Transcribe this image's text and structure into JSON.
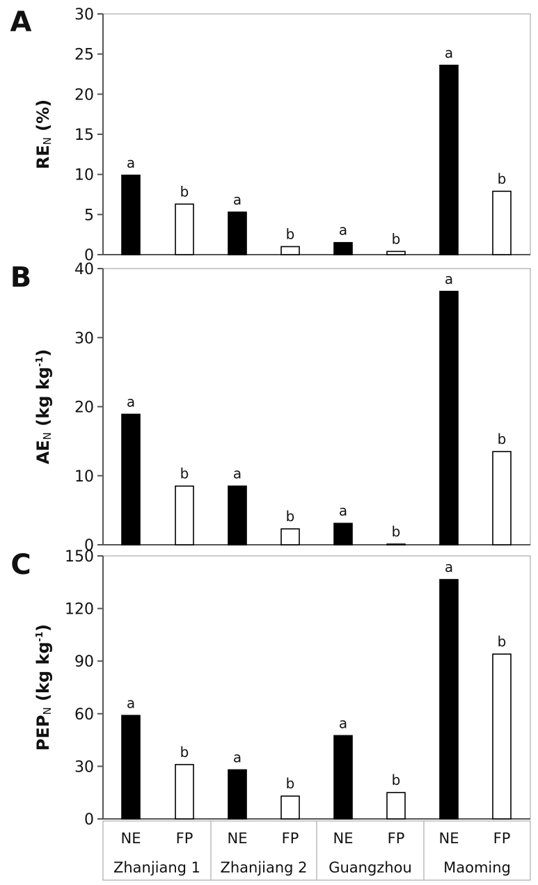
{
  "chart_data": [
    {
      "panel": "A",
      "type": "bar",
      "ylabel_main": "RE",
      "ylabel_sub": "N",
      "ylabel_rest": " (%)",
      "ylabel_sup": "",
      "ylabel_end": "",
      "ylim": [
        0,
        30
      ],
      "yticks": [
        "0",
        "5",
        "10",
        "15",
        "20",
        "25",
        "30"
      ],
      "values": [
        9.9,
        6.3,
        5.3,
        1.0,
        1.5,
        0.4,
        23.6,
        7.9
      ],
      "letters": [
        "a",
        "b",
        "a",
        "b",
        "a",
        "b",
        "a",
        "b"
      ]
    },
    {
      "panel": "B",
      "type": "bar",
      "ylabel_main": "AE",
      "ylabel_sub": "N",
      "ylabel_rest": " (kg kg",
      "ylabel_sup": "-1",
      "ylabel_end": ")",
      "ylim": [
        0,
        40
      ],
      "yticks": [
        "0",
        "10",
        "20",
        "30",
        "40"
      ],
      "values": [
        18.9,
        8.5,
        8.5,
        2.3,
        3.1,
        0.1,
        36.7,
        13.5
      ],
      "letters": [
        "a",
        "b",
        "a",
        "b",
        "a",
        "b",
        "a",
        "b"
      ]
    },
    {
      "panel": "C",
      "type": "bar",
      "ylabel_main": "PEP",
      "ylabel_sub": "N",
      "ylabel_rest": " (kg kg",
      "ylabel_sup": "-1",
      "ylabel_end": ")",
      "ylim": [
        0,
        150
      ],
      "yticks": [
        "0",
        "30",
        "60",
        "90",
        "120",
        "150"
      ],
      "values": [
        59,
        31,
        28,
        13,
        47.5,
        15,
        136.5,
        94
      ],
      "letters": [
        "a",
        "b",
        "a",
        "b",
        "a",
        "b",
        "a",
        "b"
      ]
    }
  ],
  "categories": [
    "NE",
    "FP",
    "NE",
    "FP",
    "NE",
    "FP",
    "NE",
    "FP"
  ],
  "series": [
    {
      "treatment": "NE",
      "fill": "#000000"
    },
    {
      "treatment": "FP",
      "fill": "#ffffff"
    }
  ],
  "sites": [
    "Zhanjiang 1",
    "Zhanjiang 2",
    "Guangzhou",
    "Maoming"
  ],
  "colors": {
    "axis": "#555555",
    "frame": "#aaaaaa",
    "bar_stroke": "#000000"
  }
}
